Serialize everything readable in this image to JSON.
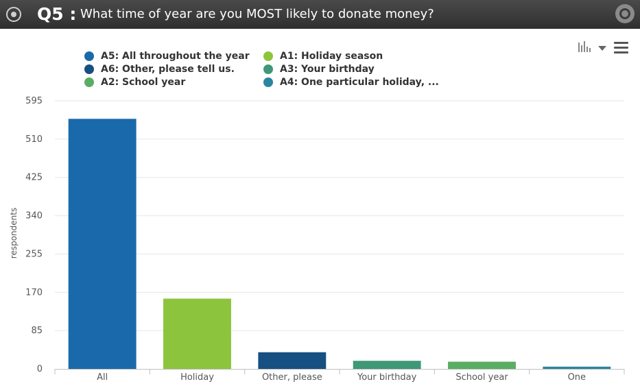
{
  "header": {
    "question_number": "Q5 :",
    "question_text": "What time of year are you MOST likely to donate money?"
  },
  "icons": {
    "radio": "radio-selected-icon",
    "logo": "app-logo-icon",
    "chart_type": "bar-chart-icon",
    "dropdown": "caret-down-icon",
    "menu": "hamburger-menu-icon"
  },
  "legend": [
    {
      "label": "A5: All throughout the year",
      "color": "#1a6aab"
    },
    {
      "label": "A6: Other, please tell us.",
      "color": "#164f82"
    },
    {
      "label": "A2: School year",
      "color": "#5aad62"
    },
    {
      "label": "A1: Holiday season",
      "color": "#8cc43e"
    },
    {
      "label": "A3: Your birthday",
      "color": "#3f9878"
    },
    {
      "label": "A4: One particular holiday, ...",
      "color": "#2a85a0"
    }
  ],
  "chart_data": {
    "type": "bar",
    "title": "",
    "xlabel": "",
    "ylabel": "respondents",
    "categories": [
      "All",
      "Holiday",
      "Other, please",
      "Your birthday",
      "School year",
      "One"
    ],
    "values": [
      555,
      156,
      37,
      18,
      16,
      5
    ],
    "colors": [
      "#1a6aab",
      "#8cc43e",
      "#164f82",
      "#3f9878",
      "#5aad62",
      "#2a85a0"
    ],
    "yticks": [
      0,
      85,
      170,
      255,
      340,
      425,
      510,
      595
    ],
    "ylim": [
      0,
      595
    ],
    "grid": true,
    "legend_position": "top-left"
  }
}
